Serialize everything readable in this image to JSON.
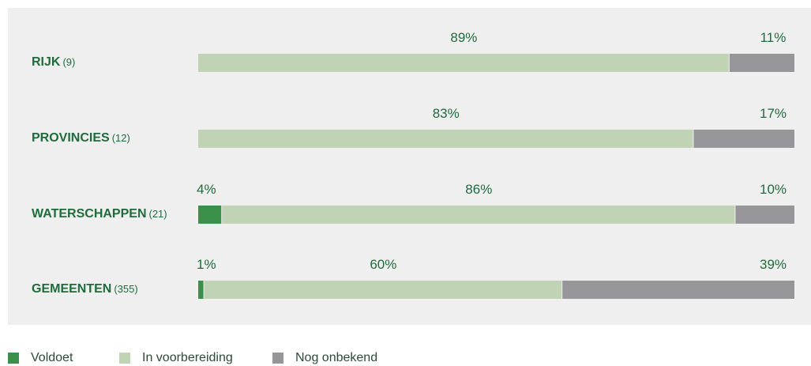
{
  "chart_data": {
    "type": "bar",
    "orientation": "horizontal",
    "stacked": true,
    "percent": true,
    "categories": [
      {
        "name": "RIJK",
        "count": "(9)"
      },
      {
        "name": "PROVINCIES",
        "count": "(12)"
      },
      {
        "name": "WATERSCHAPPEN",
        "count": "(21)"
      },
      {
        "name": "GEMEENTEN",
        "count": "(355)"
      }
    ],
    "series": [
      {
        "name": "Voldoet",
        "color": "#3a8f49",
        "values": [
          0,
          0,
          4,
          1
        ],
        "labels": [
          "",
          "",
          "4%",
          "1%"
        ]
      },
      {
        "name": "In voorbereiding",
        "color": "#c0d3b5",
        "values": [
          89,
          83,
          86,
          60
        ],
        "labels": [
          "89%",
          "83%",
          "86%",
          "60%"
        ]
      },
      {
        "name": "Nog onbekend",
        "color": "#96969a",
        "values": [
          11,
          17,
          10,
          39
        ],
        "labels": [
          "11%",
          "17%",
          "10%",
          "39%"
        ]
      }
    ],
    "label_color": "#1f6b3c",
    "background": "#efefef",
    "grid": false,
    "legend_position": "bottom-left"
  }
}
